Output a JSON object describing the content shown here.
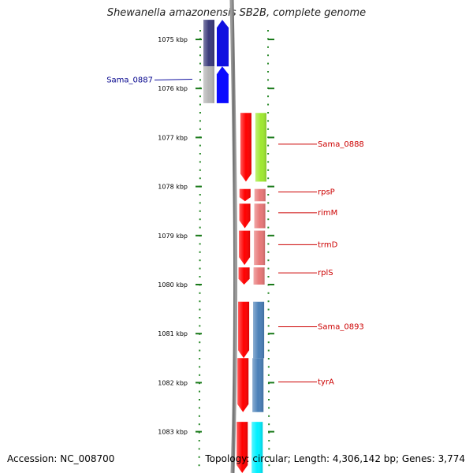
{
  "title": "Shewanella amazonensis SB2B, complete genome",
  "footer": {
    "accession": "Accession: NC_008700",
    "summary": "Topology: circular; Length: 4,306,142 bp; Genes: 3,774"
  },
  "scale": {
    "ticks": [
      {
        "label": "1075 kbp",
        "kbp": 1075
      },
      {
        "label": "1076 kbp",
        "kbp": 1076
      },
      {
        "label": "1077 kbp",
        "kbp": 1077
      },
      {
        "label": "1078 kbp",
        "kbp": 1078
      },
      {
        "label": "1079 kbp",
        "kbp": 1079
      },
      {
        "label": "1080 kbp",
        "kbp": 1080
      },
      {
        "label": "1081 kbp",
        "kbp": 1081
      },
      {
        "label": "1082 kbp",
        "kbp": 1082
      },
      {
        "label": "1083 kbp",
        "kbp": 1083
      }
    ]
  },
  "genes": [
    {
      "label": "",
      "strand": "-",
      "start": 1074.6,
      "end": 1075.55,
      "color": "#3a3a7a",
      "cog_color": "#1010e0"
    },
    {
      "label": "Sama_0887",
      "strand": "-",
      "start": 1075.55,
      "end": 1076.3,
      "color": "#b4b4b4",
      "cog_color": "#0a0aff"
    },
    {
      "label": "Sama_0888",
      "strand": "+",
      "start": 1076.5,
      "end": 1077.9,
      "color": "#ff0000",
      "cog_color": "#9ee830"
    },
    {
      "label": "rpsP",
      "strand": "+",
      "start": 1078.05,
      "end": 1078.3,
      "color": "#ff0000",
      "cog_color": "#e87878"
    },
    {
      "label": "rimM",
      "strand": "+",
      "start": 1078.35,
      "end": 1078.85,
      "color": "#ff0000",
      "cog_color": "#e87878"
    },
    {
      "label": "trmD",
      "strand": "+",
      "start": 1078.9,
      "end": 1079.6,
      "color": "#ff0000",
      "cog_color": "#e87878"
    },
    {
      "label": "rplS",
      "strand": "+",
      "start": 1079.65,
      "end": 1080.0,
      "color": "#ff0000",
      "cog_color": "#e87878"
    },
    {
      "label": "Sama_0893",
      "strand": "+",
      "start": 1080.35,
      "end": 1081.5,
      "color": "#ff0000",
      "cog_color": "#4a80b8"
    },
    {
      "label": "tyrA",
      "strand": "+",
      "start": 1081.5,
      "end": 1082.6,
      "color": "#ff0000",
      "cog_color": "#4a80b8"
    },
    {
      "label": "",
      "strand": "+",
      "start": 1082.8,
      "end": 1083.9,
      "color": "#ff0000",
      "cog_color": "#00f0ff"
    }
  ]
}
